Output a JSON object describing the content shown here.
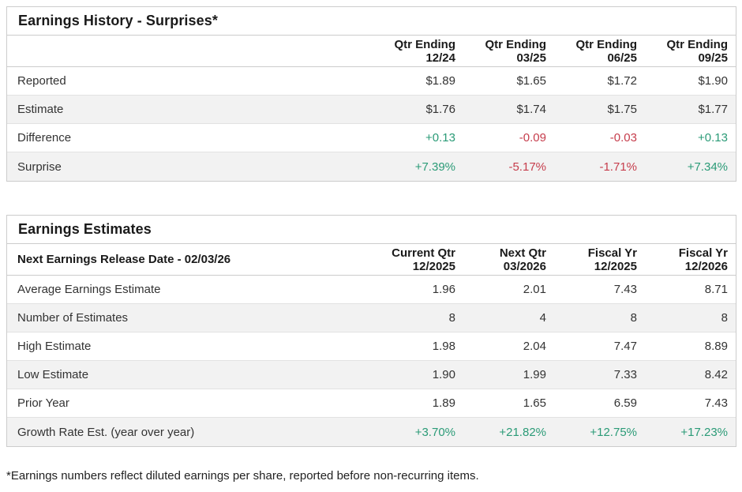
{
  "colors": {
    "positive": "#2b9b77",
    "negative": "#c63d4c",
    "heading": "#1a1a1a",
    "body_text": "#333333",
    "row_alt_bg": "#f2f2f2",
    "border": "#cccccc"
  },
  "surprises_table": {
    "title": "Earnings History - Surprises*",
    "corner_label": "",
    "columns": [
      {
        "line1": "Qtr Ending",
        "line2": "12/24"
      },
      {
        "line1": "Qtr Ending",
        "line2": "03/25"
      },
      {
        "line1": "Qtr Ending",
        "line2": "06/25"
      },
      {
        "line1": "Qtr Ending",
        "line2": "09/25"
      }
    ],
    "rows": [
      {
        "label": "Reported",
        "values": [
          "$1.89",
          "$1.65",
          "$1.72",
          "$1.90"
        ]
      },
      {
        "label": "Estimate",
        "values": [
          "$1.76",
          "$1.74",
          "$1.75",
          "$1.77"
        ]
      },
      {
        "label": "Difference",
        "values": [
          "+0.13",
          "-0.09",
          "-0.03",
          "+0.13"
        ]
      },
      {
        "label": "Surprise",
        "values": [
          "+7.39%",
          "-5.17%",
          "-1.71%",
          "+7.34%"
        ]
      }
    ]
  },
  "estimates_table": {
    "title": "Earnings Estimates",
    "corner_label": "Next Earnings Release Date - 02/03/26",
    "columns": [
      {
        "line1": "Current Qtr",
        "line2": "12/2025"
      },
      {
        "line1": "Next Qtr",
        "line2": "03/2026"
      },
      {
        "line1": "Fiscal Yr",
        "line2": "12/2025"
      },
      {
        "line1": "Fiscal Yr",
        "line2": "12/2026"
      }
    ],
    "rows": [
      {
        "label": "Average Earnings Estimate",
        "values": [
          "1.96",
          "2.01",
          "7.43",
          "8.71"
        ]
      },
      {
        "label": "Number of Estimates",
        "values": [
          "8",
          "4",
          "8",
          "8"
        ]
      },
      {
        "label": "High Estimate",
        "values": [
          "1.98",
          "2.04",
          "7.47",
          "8.89"
        ]
      },
      {
        "label": "Low Estimate",
        "values": [
          "1.90",
          "1.99",
          "7.33",
          "8.42"
        ]
      },
      {
        "label": "Prior Year",
        "values": [
          "1.89",
          "1.65",
          "6.59",
          "7.43"
        ]
      },
      {
        "label": "Growth Rate Est. (year over year)",
        "values": [
          "+3.70%",
          "+21.82%",
          "+12.75%",
          "+17.23%"
        ]
      }
    ]
  },
  "footnote": "*Earnings numbers reflect diluted earnings per share, reported before non-recurring items."
}
